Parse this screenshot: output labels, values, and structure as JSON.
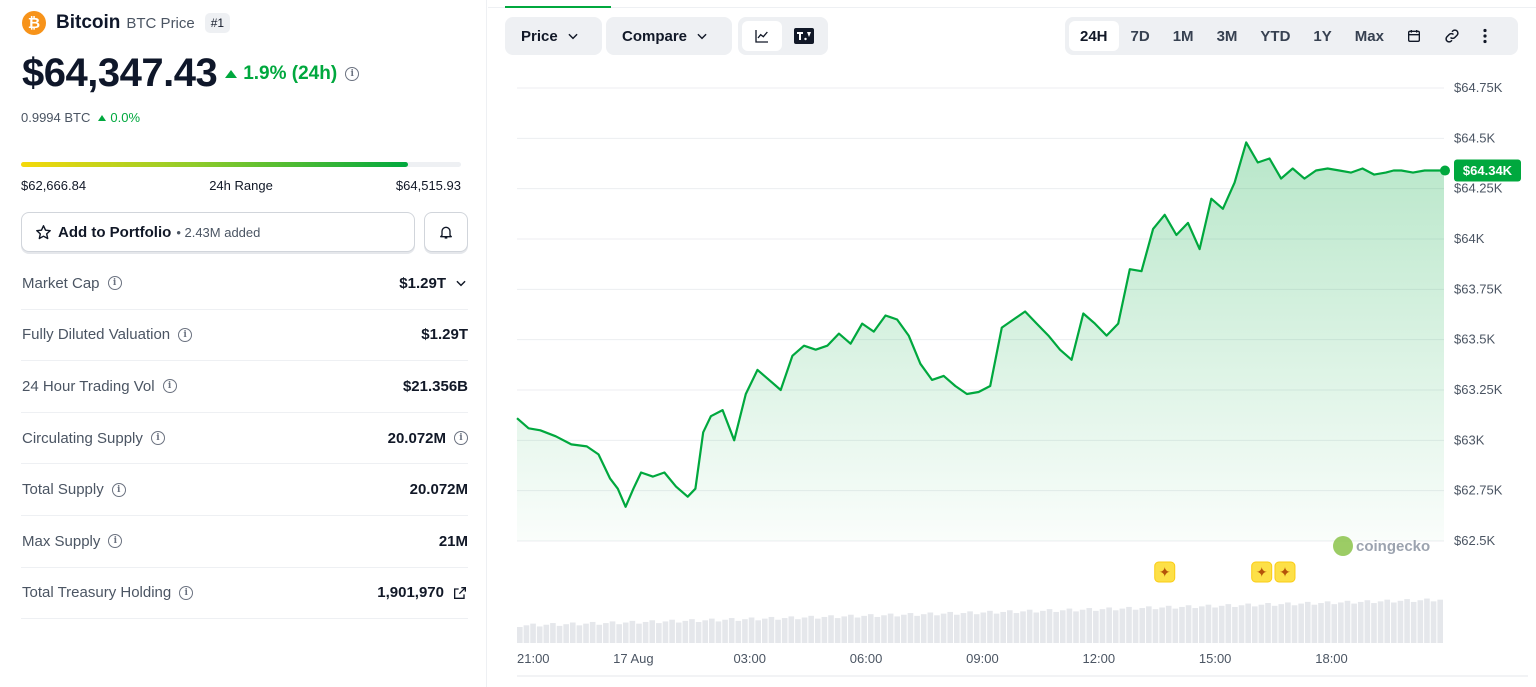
{
  "coin": {
    "logo_glyph": "₿",
    "name": "Bitcoin",
    "subtitle": "BTC Price",
    "rank": "#1",
    "price": "$64,347.43",
    "change_24h": "1.9% (24h)",
    "btc_value": "0.9994 BTC",
    "btc_change": "0.0%",
    "range_low": "$62,666.84",
    "range_label": "24h Range",
    "range_high": "$64,515.93",
    "range_position": 0.88,
    "accent_color": "#00a83e",
    "logo_color": "#f7931a"
  },
  "portfolio": {
    "label": "Add to Portfolio",
    "added": "• 2.43M added"
  },
  "stats": [
    {
      "label": "Market Cap",
      "value": "$1.29T"
    },
    {
      "label": "Fully Diluted Valuation",
      "value": "$1.29T"
    },
    {
      "label": "24 Hour Trading Vol",
      "value": "$21.356B"
    },
    {
      "label": "Circulating Supply",
      "value": "20.072M"
    },
    {
      "label": "Total Supply",
      "value": "20.072M"
    },
    {
      "label": "Max Supply",
      "value": "21M"
    },
    {
      "label": "Total Treasury Holding",
      "value": "1,901,970"
    }
  ],
  "toolbar": {
    "price_label": "Price",
    "compare_label": "Compare",
    "ranges": [
      "24H",
      "7D",
      "1M",
      "3M",
      "YTD",
      "1Y",
      "Max"
    ],
    "active_range": "24H"
  },
  "chart_data": {
    "type": "area",
    "title": "",
    "xlabel": "",
    "ylabel": "",
    "ylim": [
      62500,
      64750
    ],
    "yticks": [
      "$64.75K",
      "$64.5K",
      "$64.25K",
      "$64K",
      "$63.75K",
      "$63.5K",
      "$63.25K",
      "$63K",
      "$62.75K",
      "$62.5K"
    ],
    "ytick_values": [
      64750,
      64500,
      64250,
      64000,
      63750,
      63500,
      63250,
      63000,
      62750,
      62500
    ],
    "xticks": [
      "21:00",
      "17 Aug",
      "03:00",
      "06:00",
      "09:00",
      "12:00",
      "15:00",
      "18:00"
    ],
    "xtick_hours": [
      0,
      3,
      6,
      9,
      12,
      15,
      18,
      21
    ],
    "x_range_hours": [
      0,
      23.9
    ],
    "current_label": "$64.34K",
    "current_value": 64340,
    "line_color": "#00a83e",
    "grid": true,
    "watermark": "coingecko",
    "event_marker_hours": [
      16.7,
      19.2,
      19.8
    ],
    "series": [
      {
        "x": [
          0,
          0.3,
          0.6,
          1.0,
          1.4,
          1.8,
          2.1,
          2.4,
          2.6,
          2.8,
          3.0,
          3.2,
          3.5,
          3.8,
          4.1,
          4.4,
          4.6,
          4.8,
          5.0,
          5.3,
          5.6,
          5.9,
          6.2,
          6.5,
          6.8,
          7.1,
          7.4,
          7.7,
          8.0,
          8.3,
          8.6,
          8.9,
          9.2,
          9.5,
          9.8,
          10.1,
          10.4,
          10.7,
          11.0,
          11.3,
          11.6,
          11.9,
          12.2,
          12.5,
          12.8,
          13.1,
          13.4,
          13.7,
          14.0,
          14.3,
          14.6,
          14.9,
          15.2,
          15.5,
          15.8,
          16.1,
          16.4,
          16.7,
          17.0,
          17.3,
          17.6,
          17.9,
          18.2,
          18.5,
          18.8,
          19.1,
          19.4,
          19.7,
          20.0,
          20.3,
          20.6,
          20.9,
          21.2,
          21.5,
          21.8,
          22.1,
          22.4,
          22.6,
          22.8,
          23.1,
          23.4,
          23.6,
          23.9
        ],
        "y": [
          63110,
          63060,
          63050,
          63020,
          62980,
          62970,
          62930,
          62810,
          62760,
          62670,
          62760,
          62840,
          62820,
          62840,
          62770,
          62720,
          62760,
          63040,
          63120,
          63150,
          63000,
          63230,
          63350,
          63300,
          63250,
          63420,
          63470,
          63450,
          63470,
          63530,
          63480,
          63580,
          63540,
          63620,
          63600,
          63520,
          63380,
          63300,
          63320,
          63270,
          63230,
          63240,
          63270,
          63560,
          63600,
          63640,
          63580,
          63520,
          63450,
          63400,
          63630,
          63580,
          63520,
          63580,
          63850,
          63840,
          64050,
          64120,
          64020,
          64080,
          63950,
          64200,
          64150,
          64280,
          64480,
          64380,
          64400,
          64300,
          64350,
          64300,
          64340,
          64350,
          64340,
          64330,
          64350,
          64320,
          64330,
          64340,
          64340,
          64330,
          64340,
          64340,
          64340
        ]
      }
    ]
  }
}
